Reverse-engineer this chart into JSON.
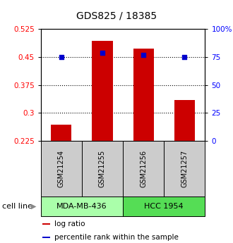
{
  "title": "GDS825 / 18385",
  "samples": [
    "GSM21254",
    "GSM21255",
    "GSM21256",
    "GSM21257"
  ],
  "log_ratios": [
    0.268,
    0.493,
    0.472,
    0.335
  ],
  "percentile_ranks": [
    75,
    79,
    77,
    75
  ],
  "cell_lines": [
    {
      "label": "MDA-MB-436",
      "samples": [
        0,
        1
      ],
      "color": "#aaffaa"
    },
    {
      "label": "HCC 1954",
      "samples": [
        2,
        3
      ],
      "color": "#55dd55"
    }
  ],
  "bar_color": "#cc0000",
  "dot_color": "#0000cc",
  "ylim_left": [
    0.225,
    0.525
  ],
  "ylim_right": [
    0,
    100
  ],
  "yticks_left": [
    0.225,
    0.3,
    0.375,
    0.45,
    0.525
  ],
  "yticks_right": [
    0,
    25,
    50,
    75,
    100
  ],
  "ytick_labels_left": [
    "0.225",
    "0.3",
    "0.375",
    "0.45",
    "0.525"
  ],
  "ytick_labels_right": [
    "0",
    "25",
    "50",
    "75",
    "100%"
  ],
  "hlines": [
    0.3,
    0.375,
    0.45
  ],
  "bar_width": 0.5,
  "bar_bottom": 0.225,
  "cell_line_label": "cell line",
  "legend_items": [
    {
      "color": "#cc0000",
      "label": "log ratio"
    },
    {
      "color": "#0000cc",
      "label": "percentile rank within the sample"
    }
  ],
  "sample_box_color": "#cccccc",
  "dot_size": 25
}
